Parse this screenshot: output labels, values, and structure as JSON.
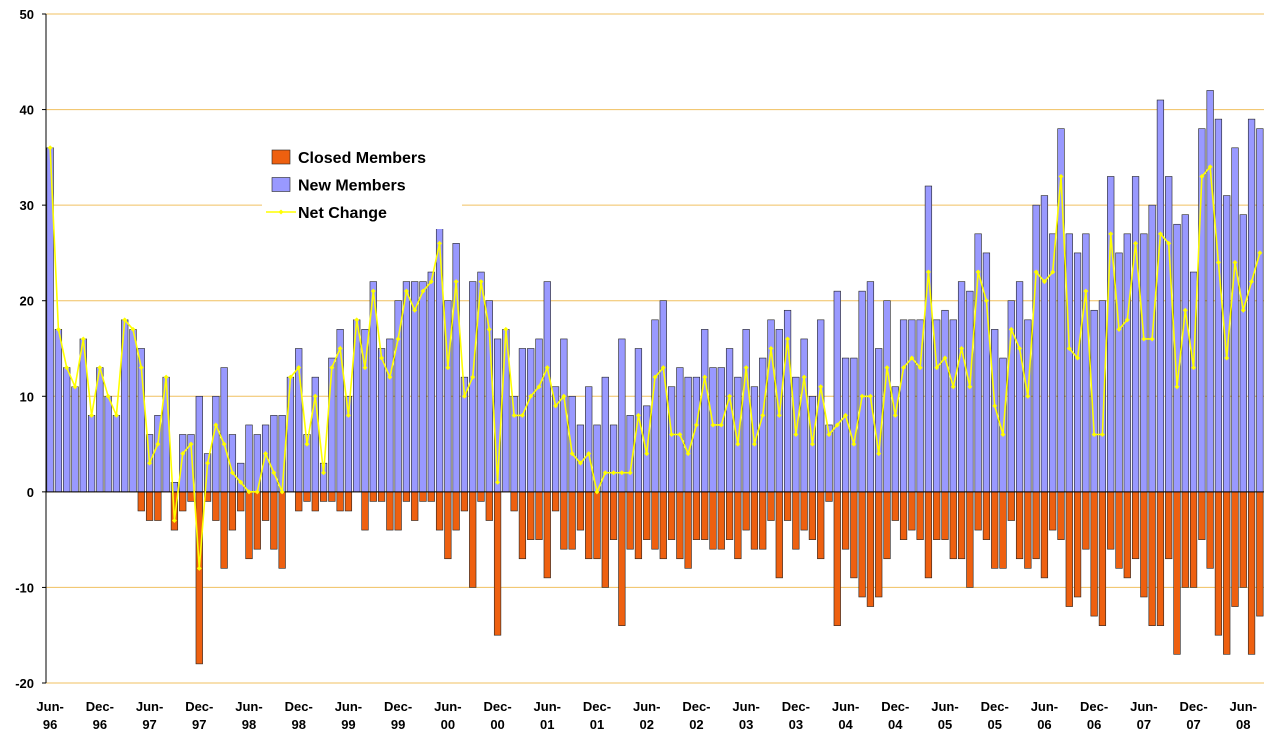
{
  "chart_data": {
    "type": "bar",
    "categories": [
      "Jun-96",
      null,
      null,
      null,
      null,
      null,
      "Dec-96",
      null,
      null,
      null,
      null,
      null,
      "Jun-97",
      null,
      null,
      null,
      null,
      null,
      "Dec-97",
      null,
      null,
      null,
      null,
      null,
      "Jun-98",
      null,
      null,
      null,
      null,
      null,
      "Dec-98",
      null,
      null,
      null,
      null,
      null,
      "Jun-99",
      null,
      null,
      null,
      null,
      null,
      "Dec-99",
      null,
      null,
      null,
      null,
      null,
      "Jun-00",
      null,
      null,
      null,
      null,
      null,
      "Dec-00",
      null,
      null,
      null,
      null,
      null,
      "Jun-01",
      null,
      null,
      null,
      null,
      null,
      "Dec-01",
      null,
      null,
      null,
      null,
      null,
      "Jun-02",
      null,
      null,
      null,
      null,
      null,
      "Dec-02",
      null,
      null,
      null,
      null,
      null,
      "Jun-03",
      null,
      null,
      null,
      null,
      null,
      "Dec-03",
      null,
      null,
      null,
      null,
      null,
      "Jun-04",
      null,
      null,
      null,
      null,
      null,
      "Dec-04",
      null,
      null,
      null,
      null,
      null,
      "Jun-05",
      null,
      null,
      null,
      null,
      null,
      "Dec-05",
      null,
      null,
      null,
      null,
      null,
      "Jun-06",
      null,
      null,
      null,
      null,
      null,
      "Dec-06",
      null,
      null,
      null,
      null,
      null,
      "Jun-07",
      null,
      null,
      null,
      null,
      null,
      "Dec-07",
      null,
      null,
      null,
      null,
      null,
      "Jun-08",
      null,
      null
    ],
    "series": [
      {
        "name": "Closed Members",
        "type": "bar",
        "color": "#ee6010",
        "values": [
          0,
          0,
          0,
          0,
          0,
          0,
          0,
          0,
          0,
          0,
          0,
          -2,
          -3,
          -3,
          0,
          -4,
          -2,
          -1,
          -18,
          -1,
          -3,
          -8,
          -4,
          -2,
          -7,
          -6,
          -3,
          -6,
          -8,
          0,
          -2,
          -1,
          -2,
          -1,
          -1,
          -2,
          -2,
          0,
          -4,
          -1,
          -1,
          -4,
          -4,
          -1,
          -3,
          -1,
          -1,
          -4,
          -7,
          -4,
          -2,
          -10,
          -1,
          -3,
          -15,
          0,
          -2,
          -7,
          -5,
          -5,
          -9,
          -2,
          -6,
          -6,
          -4,
          -7,
          -7,
          -10,
          -5,
          -14,
          -6,
          -7,
          -5,
          -6,
          -7,
          -5,
          -7,
          -8,
          -5,
          -5,
          -6,
          -6,
          -5,
          -7,
          -4,
          -6,
          -6,
          -3,
          -9,
          -3,
          -6,
          -4,
          -5,
          -7,
          -1,
          -14,
          -6,
          -9,
          -11,
          -12,
          -11,
          -7,
          -3,
          -5,
          -4,
          -5,
          -9,
          -5,
          -5,
          -7,
          -7,
          -10,
          -4,
          -5,
          -8,
          -8,
          -3,
          -7,
          -8,
          -7,
          -9,
          -4,
          -5,
          -12,
          -11,
          -6,
          -13,
          -14,
          -6,
          -8,
          -9,
          -7,
          -11,
          -14,
          -14,
          -7,
          -17,
          -10,
          -10,
          -5,
          -8,
          -15,
          -17,
          -12,
          -10,
          -17,
          -13
        ]
      },
      {
        "name": "New Members",
        "type": "bar",
        "color": "#9999ff",
        "values": [
          36,
          17,
          13,
          11,
          16,
          8,
          13,
          10,
          8,
          18,
          17,
          15,
          6,
          8,
          12,
          1,
          6,
          6,
          10,
          4,
          10,
          13,
          6,
          3,
          7,
          6,
          7,
          8,
          8,
          12,
          15,
          6,
          12,
          3,
          14,
          17,
          10,
          18,
          17,
          22,
          15,
          16,
          20,
          22,
          22,
          22,
          23,
          30,
          20,
          26,
          12,
          22,
          23,
          20,
          16,
          17,
          10,
          15,
          15,
          16,
          22,
          11,
          16,
          10,
          7,
          11,
          7,
          12,
          7,
          16,
          8,
          15,
          9,
          18,
          20,
          11,
          13,
          12,
          12,
          17,
          13,
          13,
          15,
          12,
          17,
          11,
          14,
          18,
          17,
          19,
          12,
          16,
          10,
          18,
          7,
          21,
          14,
          14,
          21,
          22,
          15,
          20,
          11,
          18,
          18,
          18,
          32,
          18,
          19,
          18,
          22,
          21,
          27,
          25,
          17,
          14,
          20,
          22,
          18,
          30,
          31,
          27,
          38,
          27,
          25,
          27,
          19,
          20,
          33,
          25,
          27,
          33,
          27,
          30,
          41,
          33,
          28,
          29,
          23,
          38,
          42,
          39,
          31,
          36,
          29,
          39,
          38
        ]
      },
      {
        "name": "Net Change",
        "type": "line",
        "color": "#ffff00",
        "values": [
          36,
          17,
          13,
          11,
          16,
          8,
          13,
          10,
          8,
          18,
          17,
          13,
          3,
          5,
          12,
          -3,
          4,
          5,
          -8,
          3,
          7,
          5,
          2,
          1,
          0,
          0,
          4,
          2,
          0,
          12,
          13,
          5,
          10,
          2,
          13,
          15,
          8,
          18,
          13,
          21,
          14,
          12,
          16,
          21,
          19,
          21,
          22,
          26,
          13,
          22,
          10,
          12,
          22,
          17,
          1,
          17,
          8,
          8,
          10,
          11,
          13,
          9,
          10,
          4,
          3,
          4,
          0,
          2,
          2,
          2,
          2,
          8,
          4,
          12,
          13,
          6,
          6,
          4,
          7,
          12,
          7,
          7,
          10,
          5,
          13,
          5,
          8,
          15,
          8,
          16,
          6,
          12,
          5,
          11,
          6,
          7,
          8,
          5,
          10,
          10,
          4,
          13,
          8,
          13,
          14,
          13,
          23,
          13,
          14,
          11,
          15,
          11,
          23,
          20,
          9,
          6,
          17,
          15,
          10,
          23,
          22,
          23,
          33,
          15,
          14,
          21,
          6,
          6,
          27,
          17,
          18,
          26,
          16,
          16,
          27,
          26,
          11,
          19,
          13,
          33,
          34,
          24,
          14,
          24,
          19,
          22,
          25
        ]
      }
    ],
    "ylim": [
      -20,
      50
    ],
    "yticks": [
      -20,
      -10,
      0,
      10,
      20,
      30,
      40,
      50
    ],
    "grid": true
  }
}
